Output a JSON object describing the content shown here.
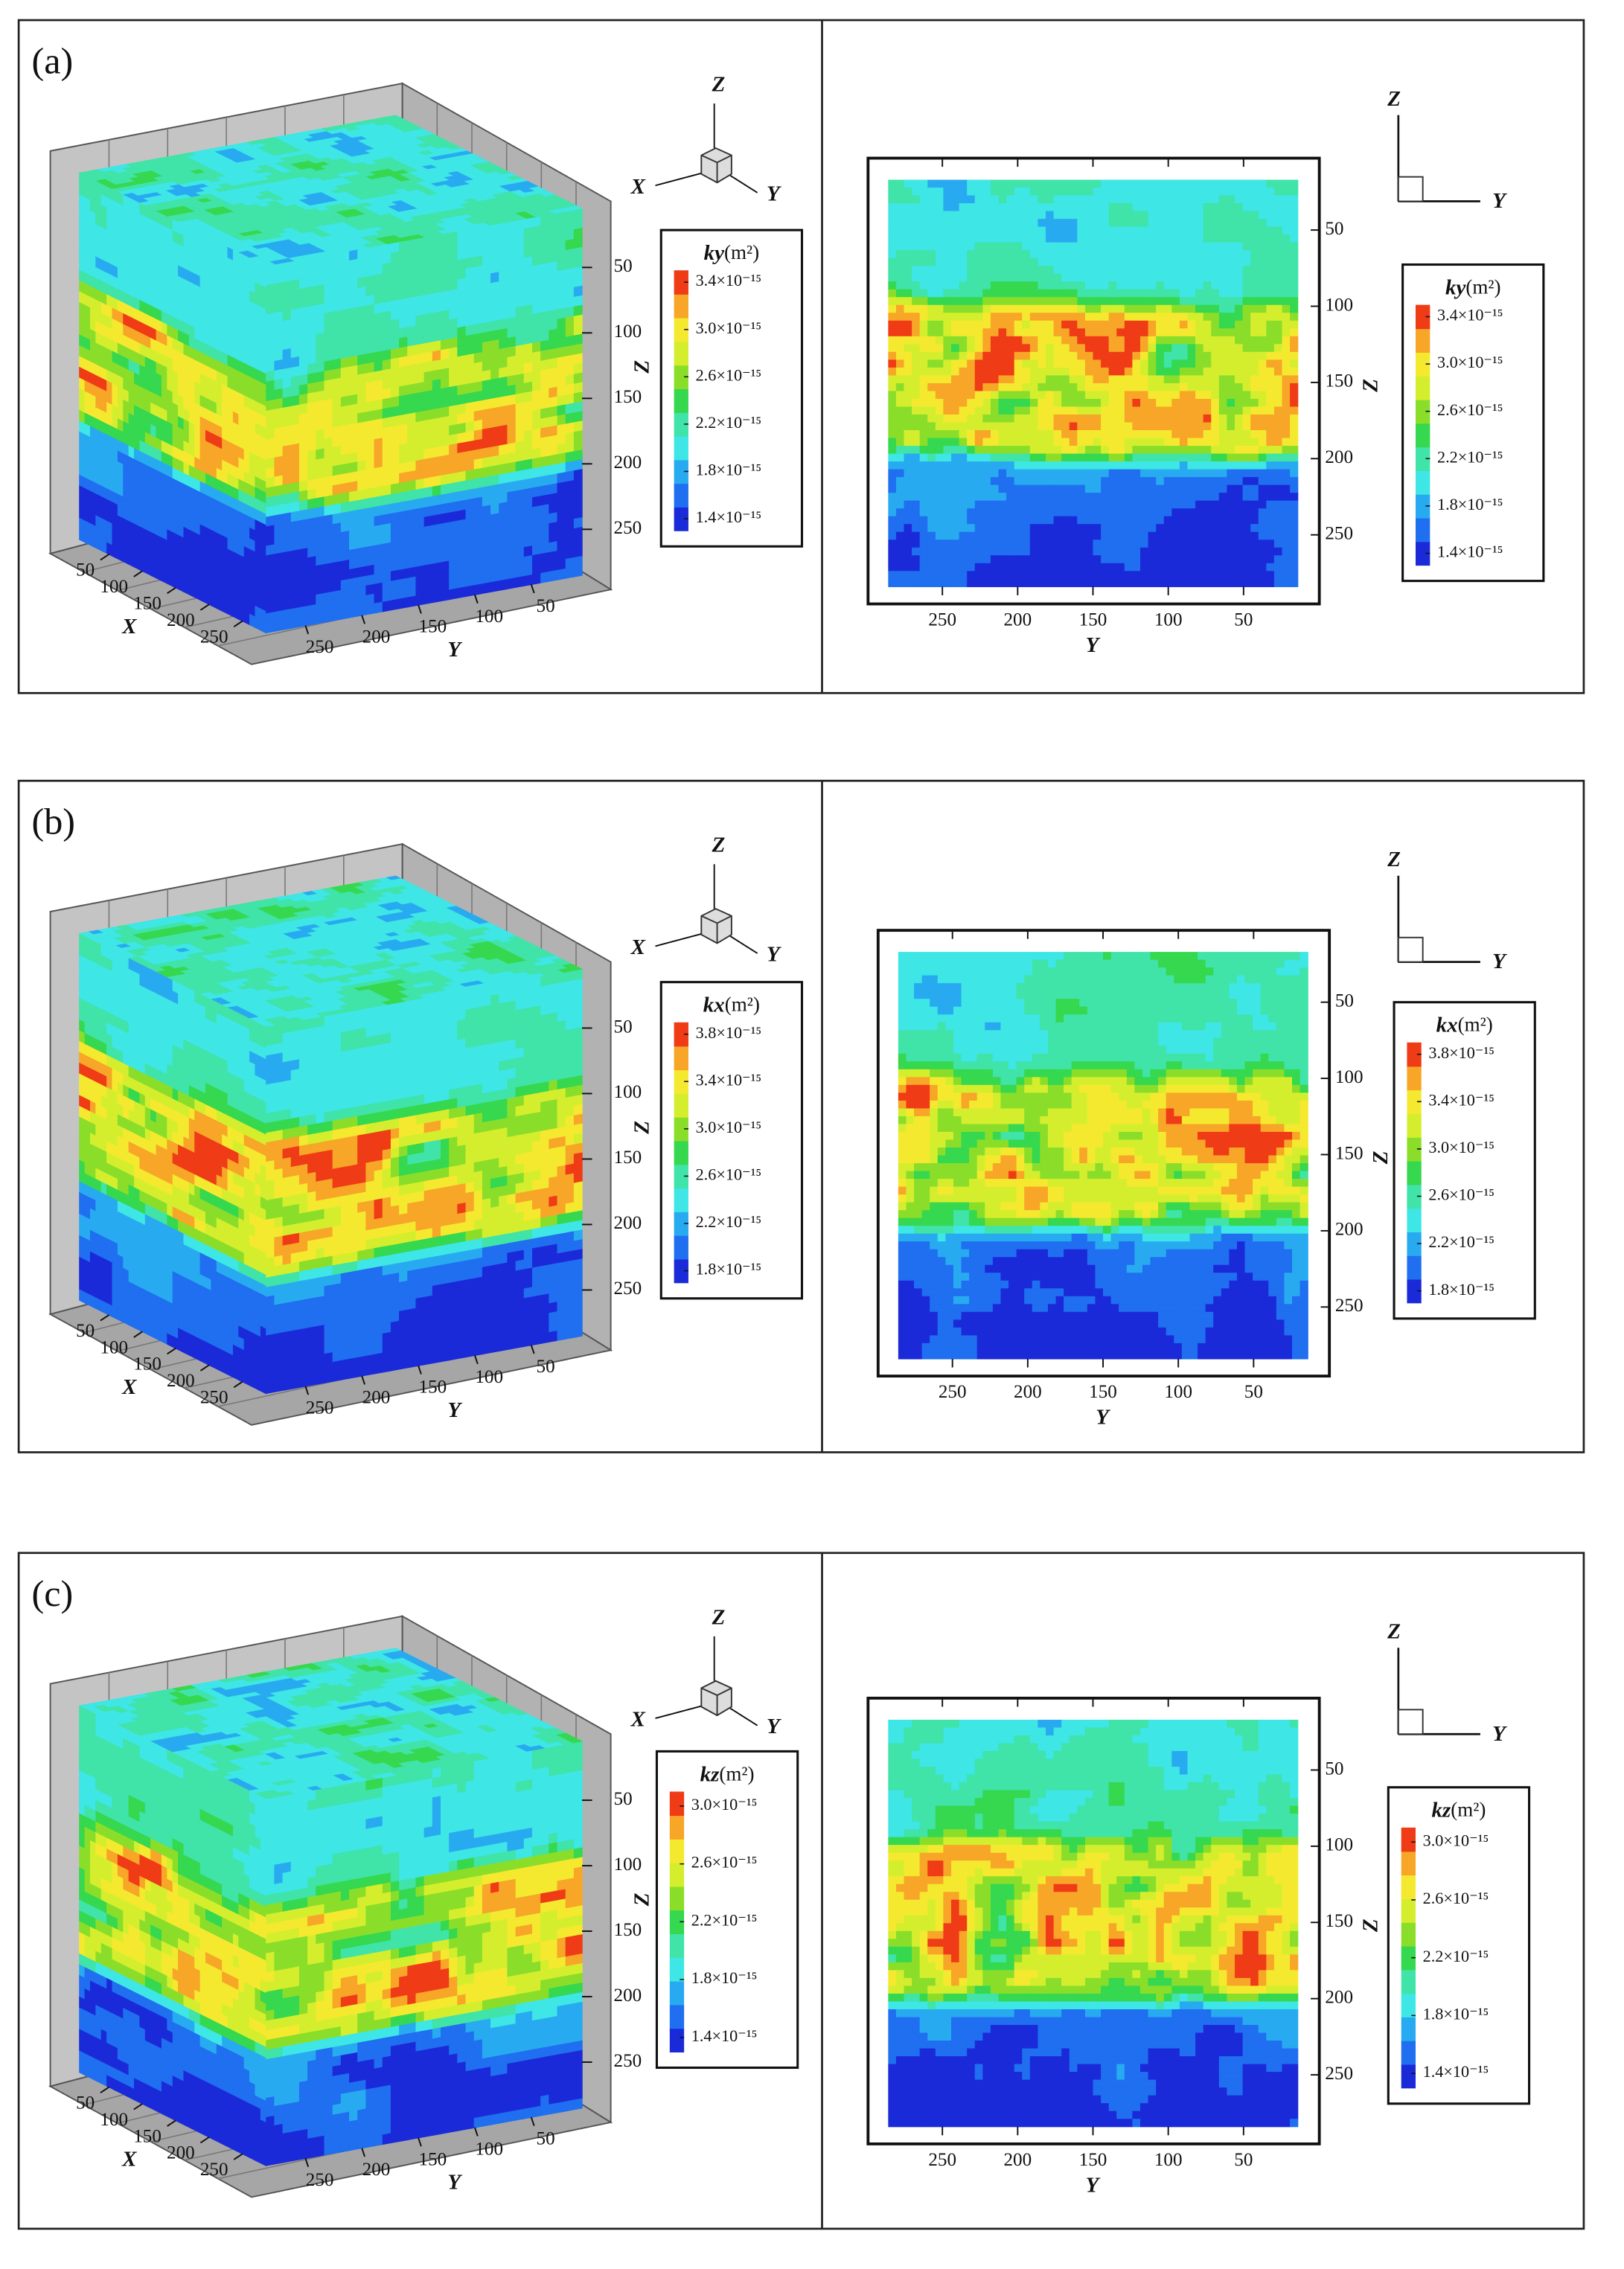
{
  "chart_data": [
    {
      "type": "contour3d",
      "label": "(a)",
      "xlim": [
        5,
        285
      ],
      "xticks": [
        50,
        100,
        150,
        200,
        250
      ],
      "xlabel": "X",
      "ylim": [
        285,
        5
      ],
      "yticks": [
        250,
        200,
        150,
        100,
        50
      ],
      "ylabel": "Y",
      "zlim": [
        5,
        285
      ],
      "zticks": [
        50,
        100,
        150,
        200,
        250
      ],
      "zlabel": "Z",
      "triad": [
        "Z",
        "X",
        "Y"
      ],
      "colorbar": {
        "title": "ky",
        "unit": "(m²)",
        "clim": [
          1.3e-15,
          3.5e-15
        ],
        "ticks": [
          {
            "value": 1.4e-15,
            "label": "1.4×10⁻¹⁵"
          },
          {
            "value": 1.8e-15,
            "label": "1.8×10⁻¹⁵"
          },
          {
            "value": 2.2e-15,
            "label": "2.2×10⁻¹⁵"
          },
          {
            "value": 2.6e-15,
            "label": "2.6×10⁻¹⁵"
          },
          {
            "value": 3e-15,
            "label": "3.0×10⁻¹⁵"
          },
          {
            "value": 3.4e-15,
            "label": "3.4×10⁻¹⁵"
          }
        ],
        "colors": [
          "#1b2ad8",
          "#1f6ff0",
          "#28aaf0",
          "#3ee6e6",
          "#40e3a8",
          "#35d84e",
          "#8ade2a",
          "#d4ee2e",
          "#f5e92f",
          "#f7a628",
          "#ef3b16"
        ]
      }
    },
    {
      "type": "contour",
      "ylim": [
        286,
        14
      ],
      "yticks": [
        250,
        200,
        150,
        100,
        50
      ],
      "ylabel": "Y",
      "zlim": [
        17,
        284
      ],
      "zticks": [
        50,
        100,
        150,
        200,
        250
      ],
      "zlabel": "Z",
      "triad": [
        "Z",
        "Y"
      ],
      "colorbar": {
        "title": "ky",
        "unit": "(m²)",
        "clim": [
          1.3e-15,
          3.5e-15
        ],
        "ticks": [
          {
            "value": 1.4e-15,
            "label": "1.4×10⁻¹⁵"
          },
          {
            "value": 1.8e-15,
            "label": "1.8×10⁻¹⁵"
          },
          {
            "value": 2.2e-15,
            "label": "2.2×10⁻¹⁵"
          },
          {
            "value": 2.6e-15,
            "label": "2.6×10⁻¹⁵"
          },
          {
            "value": 3e-15,
            "label": "3.0×10⁻¹⁵"
          },
          {
            "value": 3.4e-15,
            "label": "3.4×10⁻¹⁵"
          }
        ],
        "colors": [
          "#1b2ad8",
          "#1f6ff0",
          "#28aaf0",
          "#3ee6e6",
          "#40e3a8",
          "#35d84e",
          "#8ade2a",
          "#d4ee2e",
          "#f5e92f",
          "#f7a628",
          "#ef3b16"
        ]
      }
    },
    {
      "type": "contour3d",
      "label": "(b)",
      "xlim": [
        5,
        285
      ],
      "xticks": [
        50,
        100,
        150,
        200,
        250
      ],
      "xlabel": "X",
      "ylim": [
        285,
        5
      ],
      "yticks": [
        250,
        200,
        150,
        100,
        50
      ],
      "ylabel": "Y",
      "zlim": [
        5,
        285
      ],
      "zticks": [
        50,
        100,
        150,
        200,
        250
      ],
      "zlabel": "Z",
      "triad": [
        "Z",
        "X",
        "Y"
      ],
      "colorbar": {
        "title": "kx",
        "unit": "(m²)",
        "clim": [
          1.7e-15,
          3.9e-15
        ],
        "ticks": [
          {
            "value": 1.8e-15,
            "label": "1.8×10⁻¹⁵"
          },
          {
            "value": 2.2e-15,
            "label": "2.2×10⁻¹⁵"
          },
          {
            "value": 2.6e-15,
            "label": "2.6×10⁻¹⁵"
          },
          {
            "value": 3e-15,
            "label": "3.0×10⁻¹⁵"
          },
          {
            "value": 3.4e-15,
            "label": "3.4×10⁻¹⁵"
          },
          {
            "value": 3.8e-15,
            "label": "3.8×10⁻¹⁵"
          }
        ],
        "colors": [
          "#1b2ad8",
          "#1f6ff0",
          "#28aaf0",
          "#3ee6e6",
          "#40e3a8",
          "#35d84e",
          "#8ade2a",
          "#d4ee2e",
          "#f5e92f",
          "#f7a628",
          "#ef3b16"
        ]
      }
    },
    {
      "type": "contour",
      "ylim": [
        286,
        14
      ],
      "yticks": [
        250,
        200,
        150,
        100,
        50
      ],
      "ylabel": "Y",
      "zlim": [
        17,
        284
      ],
      "zticks": [
        50,
        100,
        150,
        200,
        250
      ],
      "zlabel": "Z",
      "triad": [
        "Z",
        "Y"
      ],
      "colorbar": {
        "title": "kx",
        "unit": "(m²)",
        "clim": [
          1.7e-15,
          3.9e-15
        ],
        "ticks": [
          {
            "value": 1.8e-15,
            "label": "1.8×10⁻¹⁵"
          },
          {
            "value": 2.2e-15,
            "label": "2.2×10⁻¹⁵"
          },
          {
            "value": 2.6e-15,
            "label": "2.6×10⁻¹⁵"
          },
          {
            "value": 3e-15,
            "label": "3.0×10⁻¹⁵"
          },
          {
            "value": 3.4e-15,
            "label": "3.4×10⁻¹⁵"
          },
          {
            "value": 3.8e-15,
            "label": "3.8×10⁻¹⁵"
          }
        ],
        "colors": [
          "#1b2ad8",
          "#1f6ff0",
          "#28aaf0",
          "#3ee6e6",
          "#40e3a8",
          "#35d84e",
          "#8ade2a",
          "#d4ee2e",
          "#f5e92f",
          "#f7a628",
          "#ef3b16"
        ]
      }
    },
    {
      "type": "contour3d",
      "label": "(c)",
      "xlim": [
        5,
        285
      ],
      "xticks": [
        50,
        100,
        150,
        200,
        250
      ],
      "xlabel": "X",
      "ylim": [
        285,
        5
      ],
      "yticks": [
        250,
        200,
        150,
        100,
        50
      ],
      "ylabel": "Y",
      "zlim": [
        5,
        285
      ],
      "zticks": [
        50,
        100,
        150,
        200,
        250
      ],
      "zlabel": "Z",
      "triad": [
        "Z",
        "X",
        "Y"
      ],
      "colorbar": {
        "title": "kz",
        "unit": "(m²)",
        "clim": [
          1.3e-15,
          3.1e-15
        ],
        "ticks": [
          {
            "value": 1.4e-15,
            "label": "1.4×10⁻¹⁵"
          },
          {
            "value": 1.8e-15,
            "label": "1.8×10⁻¹⁵"
          },
          {
            "value": 2.2e-15,
            "label": "2.2×10⁻¹⁵"
          },
          {
            "value": 2.6e-15,
            "label": "2.6×10⁻¹⁵"
          },
          {
            "value": 3e-15,
            "label": "3.0×10⁻¹⁵"
          }
        ],
        "colors": [
          "#1b2ad8",
          "#1f6ff0",
          "#28aaf0",
          "#3ee6e6",
          "#40e3a8",
          "#35d84e",
          "#8ade2a",
          "#d4ee2e",
          "#f5e92f",
          "#f7a628",
          "#ef3b16"
        ]
      }
    },
    {
      "type": "contour",
      "ylim": [
        286,
        14
      ],
      "yticks": [
        250,
        200,
        150,
        100,
        50
      ],
      "ylabel": "Y",
      "zlim": [
        17,
        284
      ],
      "zticks": [
        50,
        100,
        150,
        200,
        250
      ],
      "zlabel": "Z",
      "triad": [
        "Z",
        "Y"
      ],
      "colorbar": {
        "title": "kz",
        "unit": "(m²)",
        "clim": [
          1.3e-15,
          3.1e-15
        ],
        "ticks": [
          {
            "value": 1.4e-15,
            "label": "1.4×10⁻¹⁵"
          },
          {
            "value": 1.8e-15,
            "label": "1.8×10⁻¹⁵"
          },
          {
            "value": 2.2e-15,
            "label": "2.2×10⁻¹⁵"
          },
          {
            "value": 2.6e-15,
            "label": "2.6×10⁻¹⁵"
          },
          {
            "value": 3e-15,
            "label": "3.0×10⁻¹⁵"
          }
        ],
        "colors": [
          "#1b2ad8",
          "#1f6ff0",
          "#28aaf0",
          "#3ee6e6",
          "#40e3a8",
          "#35d84e",
          "#8ade2a",
          "#d4ee2e",
          "#f5e92f",
          "#f7a628",
          "#ef3b16"
        ]
      }
    }
  ]
}
